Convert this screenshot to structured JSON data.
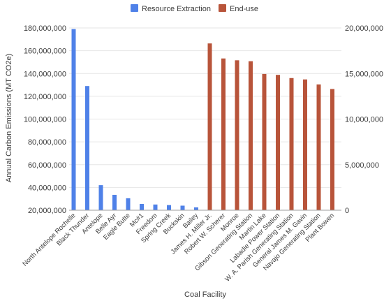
{
  "chart_data": {
    "type": "bar",
    "xlabel": "Coal Facility",
    "ylabel": "Annual Carbon Emissions (MT CO2e)",
    "legend_position": "top",
    "grid": true,
    "left_axis": {
      "ticks": [
        "20,000,000",
        "40,000,000",
        "60,000,000",
        "80,000,000",
        "100,000,000",
        "120,000,000",
        "140,000,000",
        "160,000,000",
        "180,000,000"
      ],
      "range": [
        20000000,
        180000000
      ]
    },
    "right_axis": {
      "ticks": [
        "0",
        "5,000,000",
        "10,000,000",
        "15,000,000",
        "20,000,000"
      ],
      "range": [
        0,
        20000000
      ]
    },
    "series": [
      {
        "name": "Resource Extraction",
        "color": "#4f81e8",
        "axis": "left",
        "categories": [
          "North Antelope Rochelle",
          "Black Thunder",
          "Antelope",
          "Belle Ayr",
          "Eagle Butte",
          "Mc#1",
          "Freedom",
          "Spring Creek",
          "Buckskin",
          "Bailey"
        ],
        "values": [
          179000000,
          129000000,
          42000000,
          33500000,
          30500000,
          25500000,
          25000000,
          24500000,
          24000000,
          22500000
        ]
      },
      {
        "name": "End-use",
        "color": "#b8543a",
        "axis": "right",
        "categories": [
          "James H. Miller Jr.",
          "Robert W. Scherer",
          "Monroe",
          "Gibson Generating Station",
          "Martin Lake",
          "Labadie Power Station",
          "W. A. Parish Generating Station",
          "General James M. Gavin",
          "Navajo Generating Station",
          "Plant Bowen"
        ],
        "values": [
          18300000,
          16650000,
          16450000,
          16350000,
          14950000,
          14850000,
          14500000,
          14350000,
          13800000,
          13300000
        ]
      }
    ]
  }
}
